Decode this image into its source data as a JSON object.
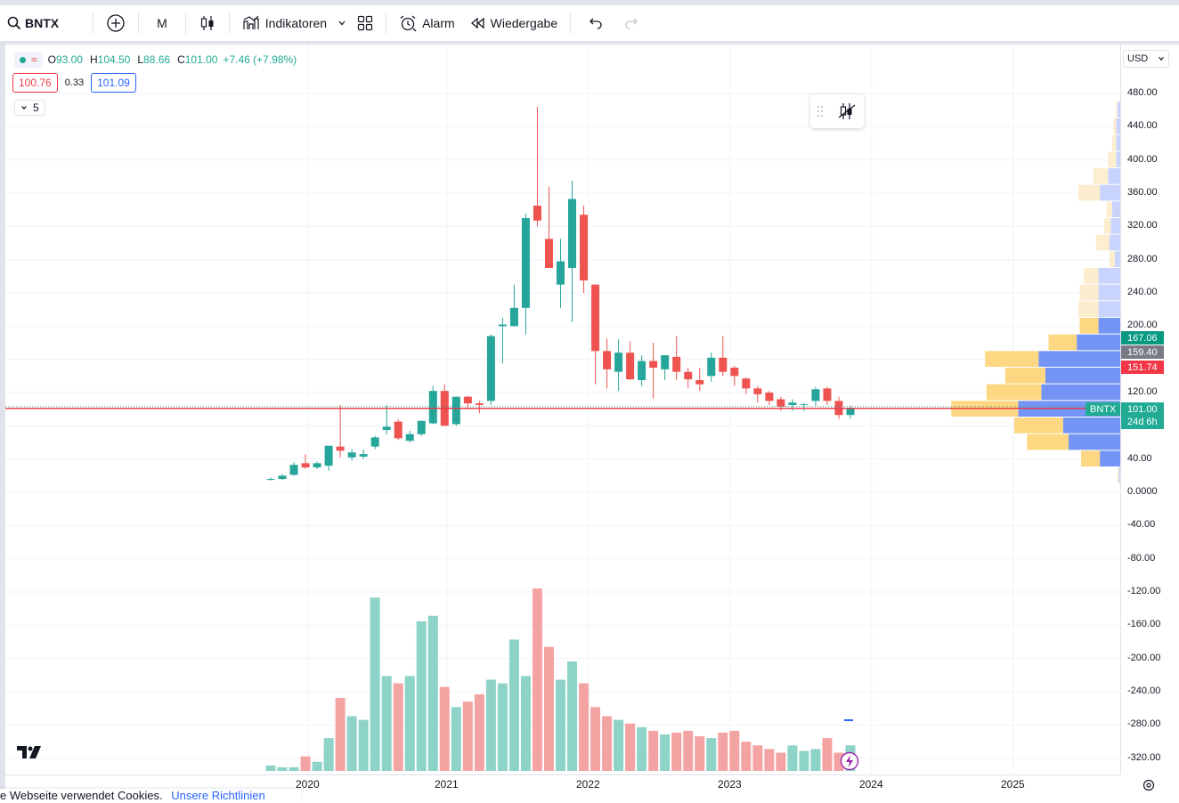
{
  "toolbar": {
    "symbol": "BNTX",
    "interval": "M",
    "indicators_label": "Indikatoren",
    "alarm_label": "Alarm",
    "replay_label": "Wiedergabe"
  },
  "legend": {
    "o_key": "O",
    "o_val": "93.00",
    "h_key": "H",
    "h_val": "104.50",
    "l_key": "L",
    "l_val": "88.66",
    "c_key": "C",
    "c_val": "101.00",
    "change": "+7.46 (+7.98%)",
    "bid": "100.76",
    "spread": "0.33",
    "ask": "101.09",
    "collapsed_count": "5"
  },
  "currency": "USD",
  "price_axis": {
    "ticks": [
      "480.00",
      "440.00",
      "400.00",
      "360.00",
      "320.00",
      "280.00",
      "240.00",
      "200.00",
      "120.00",
      "40.00",
      "0.0000",
      "-40.00",
      "-80.00",
      "-120.00",
      "-160.00",
      "-200.00",
      "-240.00",
      "-280.00",
      "-320.00"
    ],
    "tags": {
      "upper": "167.06",
      "poc": "159.40",
      "lower": "151.74",
      "last": "101.00",
      "countdown": "24d 6h",
      "symbol": "BNTX"
    }
  },
  "time_axis": [
    "2020",
    "2021",
    "2022",
    "2023",
    "2024",
    "2025"
  ],
  "cookie": {
    "text": "e Webseite verwendet Cookies.",
    "link": "Unsere Richtlinien"
  },
  "colors": {
    "up": "#26a69a",
    "down": "#ef5350",
    "up_volume": "#8ed3c8",
    "down_volume": "#f4a3a3",
    "vp_up": "#fdd57a",
    "vp_down": "#6e8ff5",
    "vp_up_light": "#fdeccc",
    "vp_down_light": "#c8d4fb",
    "last_line": "#f23645"
  },
  "chart_data": {
    "type": "candlestick",
    "symbol": "BNTX",
    "interval": "monthly",
    "ylim": [
      -340,
      500
    ],
    "candles": [
      {
        "t": "2019-10",
        "o": 15,
        "h": 18,
        "l": 14,
        "c": 16
      },
      {
        "t": "2019-11",
        "o": 16,
        "h": 22,
        "l": 15,
        "c": 20
      },
      {
        "t": "2019-12",
        "o": 21,
        "h": 36,
        "l": 20,
        "c": 33
      },
      {
        "t": "2020-01",
        "o": 35,
        "h": 46,
        "l": 28,
        "c": 30
      },
      {
        "t": "2020-02",
        "o": 30,
        "h": 37,
        "l": 28,
        "c": 35
      },
      {
        "t": "2020-03",
        "o": 32,
        "h": 55,
        "l": 26,
        "c": 56
      },
      {
        "t": "2020-04",
        "o": 55,
        "h": 105,
        "l": 42,
        "c": 50
      },
      {
        "t": "2020-05",
        "o": 42,
        "h": 52,
        "l": 38,
        "c": 48
      },
      {
        "t": "2020-06",
        "o": 43,
        "h": 52,
        "l": 40,
        "c": 46
      },
      {
        "t": "2020-07",
        "o": 55,
        "h": 68,
        "l": 52,
        "c": 66
      },
      {
        "t": "2020-08",
        "o": 75,
        "h": 105,
        "l": 70,
        "c": 79
      },
      {
        "t": "2020-09",
        "o": 85,
        "h": 88,
        "l": 63,
        "c": 65
      },
      {
        "t": "2020-10",
        "o": 62,
        "h": 74,
        "l": 60,
        "c": 70
      },
      {
        "t": "2020-11",
        "o": 70,
        "h": 84,
        "l": 68,
        "c": 86
      },
      {
        "t": "2020-12",
        "o": 83,
        "h": 128,
        "l": 82,
        "c": 122
      },
      {
        "t": "2021-01",
        "o": 122,
        "h": 130,
        "l": 80,
        "c": 80
      },
      {
        "t": "2021-02",
        "o": 82,
        "h": 115,
        "l": 80,
        "c": 115
      },
      {
        "t": "2021-03",
        "o": 115,
        "h": 116,
        "l": 100,
        "c": 107
      },
      {
        "t": "2021-04",
        "o": 107,
        "h": 110,
        "l": 95,
        "c": 105
      },
      {
        "t": "2021-05",
        "o": 110,
        "h": 190,
        "l": 105,
        "c": 188
      },
      {
        "t": "2021-06",
        "o": 200,
        "h": 210,
        "l": 155,
        "c": 202
      },
      {
        "t": "2021-07",
        "o": 200,
        "h": 250,
        "l": 200,
        "c": 222
      },
      {
        "t": "2021-08",
        "o": 222,
        "h": 335,
        "l": 190,
        "c": 330
      },
      {
        "t": "2021-09",
        "o": 345,
        "h": 464,
        "l": 320,
        "c": 327
      },
      {
        "t": "2021-10",
        "o": 305,
        "h": 368,
        "l": 270,
        "c": 270
      },
      {
        "t": "2021-11",
        "o": 250,
        "h": 305,
        "l": 222,
        "c": 278
      },
      {
        "t": "2021-12",
        "o": 270,
        "h": 375,
        "l": 205,
        "c": 353
      },
      {
        "t": "2022-01",
        "o": 334,
        "h": 345,
        "l": 240,
        "c": 255
      },
      {
        "t": "2022-02",
        "o": 250,
        "h": 250,
        "l": 130,
        "c": 170
      },
      {
        "t": "2022-03",
        "o": 170,
        "h": 185,
        "l": 125,
        "c": 148
      },
      {
        "t": "2022-04",
        "o": 145,
        "h": 184,
        "l": 122,
        "c": 168
      },
      {
        "t": "2022-05",
        "o": 168,
        "h": 182,
        "l": 135,
        "c": 136
      },
      {
        "t": "2022-06",
        "o": 135,
        "h": 165,
        "l": 128,
        "c": 158
      },
      {
        "t": "2022-07",
        "o": 158,
        "h": 180,
        "l": 113,
        "c": 150
      },
      {
        "t": "2022-08",
        "o": 148,
        "h": 165,
        "l": 135,
        "c": 165
      },
      {
        "t": "2022-09",
        "o": 163,
        "h": 188,
        "l": 135,
        "c": 145
      },
      {
        "t": "2022-10",
        "o": 145,
        "h": 150,
        "l": 125,
        "c": 136
      },
      {
        "t": "2022-11",
        "o": 135,
        "h": 150,
        "l": 122,
        "c": 130
      },
      {
        "t": "2022-12",
        "o": 140,
        "h": 168,
        "l": 133,
        "c": 162
      },
      {
        "t": "2023-01",
        "o": 162,
        "h": 188,
        "l": 140,
        "c": 145
      },
      {
        "t": "2023-02",
        "o": 150,
        "h": 152,
        "l": 128,
        "c": 140
      },
      {
        "t": "2023-03",
        "o": 137,
        "h": 138,
        "l": 118,
        "c": 125
      },
      {
        "t": "2023-04",
        "o": 125,
        "h": 128,
        "l": 108,
        "c": 118
      },
      {
        "t": "2023-05",
        "o": 120,
        "h": 122,
        "l": 105,
        "c": 110
      },
      {
        "t": "2023-06",
        "o": 112,
        "h": 115,
        "l": 98,
        "c": 103
      },
      {
        "t": "2023-07",
        "o": 105,
        "h": 112,
        "l": 98,
        "c": 108
      },
      {
        "t": "2023-08",
        "o": 105,
        "h": 107,
        "l": 98,
        "c": 106
      },
      {
        "t": "2023-09",
        "o": 110,
        "h": 127,
        "l": 104,
        "c": 124
      },
      {
        "t": "2023-10",
        "o": 125,
        "h": 127,
        "l": 105,
        "c": 110
      },
      {
        "t": "2023-11",
        "o": 110,
        "h": 115,
        "l": 88,
        "c": 93
      },
      {
        "t": "2023-12",
        "o": 93,
        "h": 104.5,
        "l": 88.66,
        "c": 101
      }
    ],
    "volume_relative": [
      0.03,
      0.02,
      0.02,
      0.08,
      0.05,
      0.18,
      0.4,
      0.3,
      0.28,
      0.95,
      0.52,
      0.48,
      0.52,
      0.82,
      0.85,
      0.46,
      0.35,
      0.38,
      0.42,
      0.5,
      0.48,
      0.72,
      0.52,
      1.0,
      0.68,
      0.5,
      0.6,
      0.48,
      0.35,
      0.3,
      0.28,
      0.26,
      0.24,
      0.22,
      0.2,
      0.21,
      0.22,
      0.19,
      0.18,
      0.21,
      0.22,
      0.16,
      0.14,
      0.12,
      0.1,
      0.14,
      0.11,
      0.12,
      0.18,
      0.1,
      0.14
    ],
    "volume_profile": [
      {
        "price": 20,
        "up": 0.02,
        "down": 0.01,
        "light": true
      },
      {
        "price": 40,
        "up": 0.28,
        "down": 0.15,
        "light": false
      },
      {
        "price": 60,
        "up": 0.62,
        "down": 0.38,
        "light": false
      },
      {
        "price": 80,
        "up": 0.73,
        "down": 0.42,
        "light": false
      },
      {
        "price": 100,
        "up": 1.0,
        "down": 0.75,
        "light": false
      },
      {
        "price": 120,
        "up": 0.82,
        "down": 0.58,
        "light": false
      },
      {
        "price": 140,
        "up": 0.6,
        "down": 0.55,
        "light": false
      },
      {
        "price": 160,
        "up": 0.8,
        "down": 0.6,
        "light": false
      },
      {
        "price": 180,
        "up": 0.42,
        "down": 0.32,
        "light": false
      },
      {
        "price": 200,
        "up": 0.28,
        "down": 0.16,
        "light": false
      },
      {
        "price": 220,
        "up": 0.3,
        "down": 0.16,
        "light": true
      },
      {
        "price": 240,
        "up": 0.28,
        "down": 0.16,
        "light": true
      },
      {
        "price": 260,
        "up": 0.22,
        "down": 0.16,
        "light": true
      },
      {
        "price": 280,
        "up": 0.08,
        "down": 0.04,
        "light": true
      },
      {
        "price": 300,
        "up": 0.2,
        "down": 0.08,
        "light": true
      },
      {
        "price": 320,
        "up": 0.1,
        "down": 0.07,
        "light": true
      },
      {
        "price": 340,
        "up": 0.08,
        "down": 0.06,
        "light": true
      },
      {
        "price": 360,
        "up": 0.32,
        "down": 0.15,
        "light": true
      },
      {
        "price": 380,
        "up": 0.22,
        "down": 0.09,
        "light": true
      },
      {
        "price": 400,
        "up": 0.12,
        "down": 0.03,
        "light": true
      },
      {
        "price": 420,
        "up": 0.06,
        "down": 0.03,
        "light": true
      },
      {
        "price": 440,
        "up": 0.04,
        "down": 0.03,
        "light": true
      },
      {
        "price": 460,
        "up": 0.02,
        "down": 0.02,
        "light": true
      }
    ],
    "last_price": 101.0
  }
}
